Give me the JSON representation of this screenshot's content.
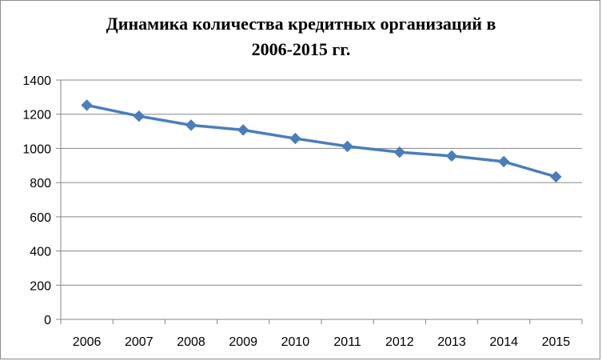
{
  "chart_data": {
    "type": "line",
    "title": "Динамика количества кредитных организаций в\n2006-2015 гг.",
    "xlabel": "",
    "ylabel": "",
    "categories": [
      "2006",
      "2007",
      "2008",
      "2009",
      "2010",
      "2011",
      "2012",
      "2013",
      "2014",
      "2015"
    ],
    "series": [
      {
        "values": [
          1253,
          1189,
          1136,
          1108,
          1058,
          1012,
          978,
          956,
          923,
          834
        ],
        "color": "#4a7ebb",
        "marker": "diamond"
      }
    ],
    "ylim": [
      0,
      1400
    ],
    "yticks": [
      0,
      200,
      400,
      600,
      800,
      1000,
      1200,
      1400
    ],
    "grid": true,
    "legend": "none"
  }
}
